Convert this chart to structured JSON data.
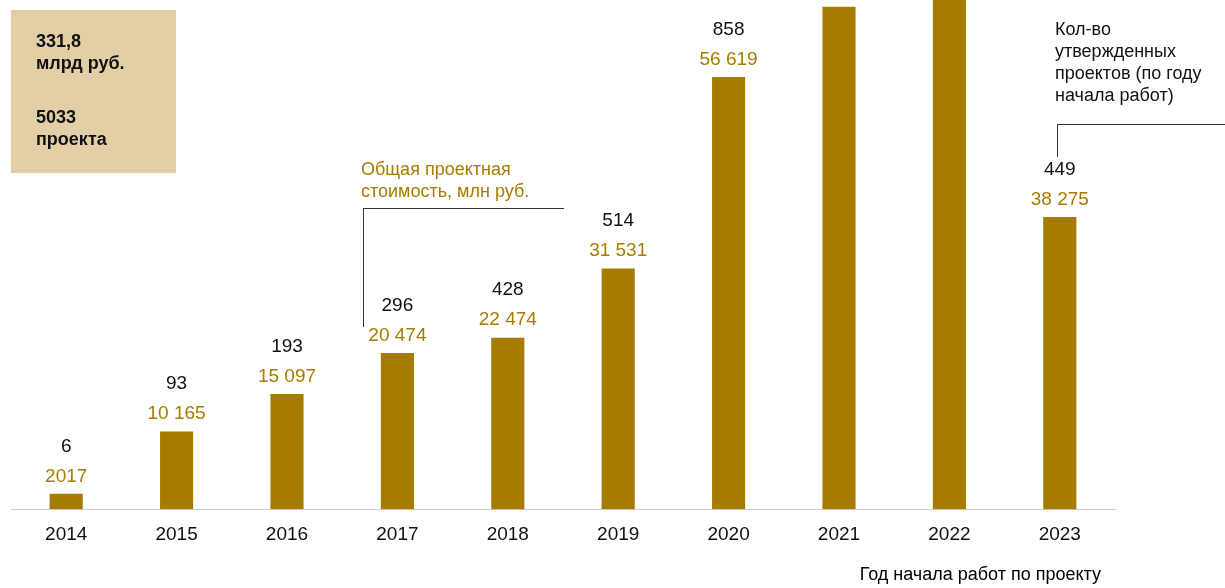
{
  "chart_data": {
    "type": "bar",
    "xlabel": "Год начала работ по проекту",
    "categories": [
      "2014",
      "2015",
      "2016",
      "2017",
      "2018",
      "2019",
      "2020",
      "2021",
      "2022",
      "2023"
    ],
    "values": [
      2017,
      10165,
      15097,
      20474,
      22474,
      31531,
      56619,
      65800,
      66700,
      38275
    ],
    "value_labels": [
      "2017",
      "10 165",
      "15 097",
      "20 474",
      "22 474",
      "31 531",
      "56 619",
      null,
      null,
      "38 275"
    ],
    "color": "#a67c00",
    "ylim": [
      0,
      66700
    ],
    "grid": false,
    "legend": false,
    "annotations": [
      "331,8\nмлрд руб.",
      "5033\nпроекта",
      "Общая проектная\nстоимость, млн руб.",
      "Кол-во\nутвержденных\nпроектов (по году\nначала работ)",
      {
        "text": "6",
        "x": "2014",
        "y": 2017
      },
      {
        "text": "93",
        "x": "2015",
        "y": 10165
      },
      {
        "text": "193",
        "x": "2016",
        "y": 15097
      },
      {
        "text": "296",
        "x": "2017",
        "y": 20474
      },
      {
        "text": "428",
        "x": "2018",
        "y": 22474
      },
      {
        "text": "514",
        "x": "2019",
        "y": 31531
      },
      {
        "text": "858",
        "x": "2020",
        "y": 56619
      },
      {
        "text": "449",
        "x": "2023",
        "y": 38275
      }
    ]
  }
}
